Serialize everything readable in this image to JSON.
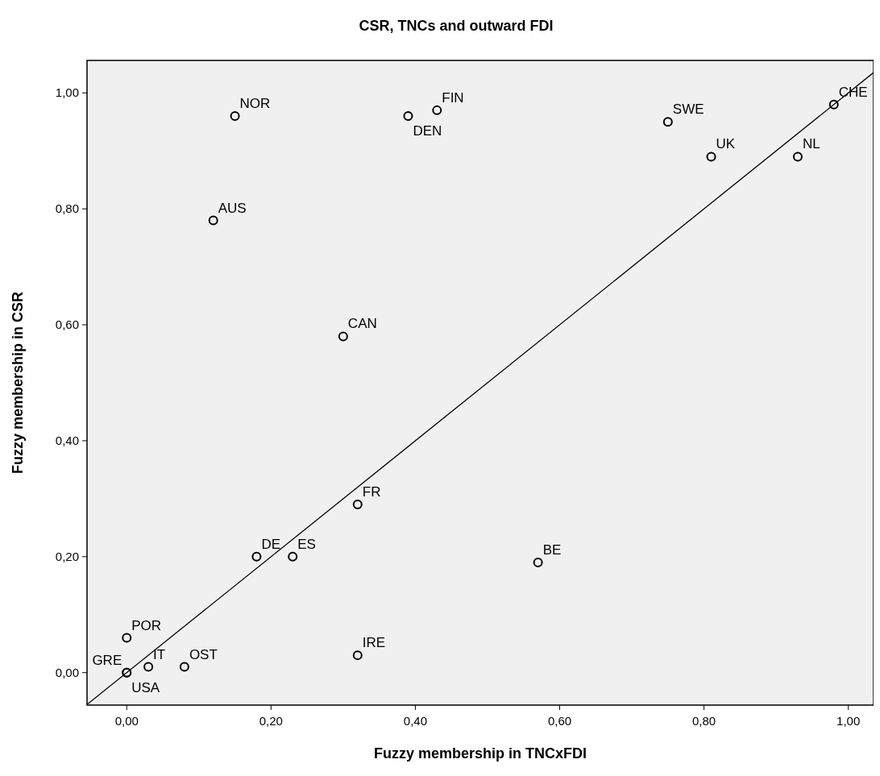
{
  "chart_data": {
    "type": "scatter",
    "title": "CSR, TNCs and outward FDI",
    "xlabel": "Fuzzy membership in TNCxFDI",
    "ylabel": "Fuzzy membership in CSR",
    "xlim": [
      -0.055,
      1.035
    ],
    "ylim": [
      -0.056,
      1.056
    ],
    "xticks": [
      {
        "value": 0,
        "label": "0,00"
      },
      {
        "value": 0.2,
        "label": "0,20"
      },
      {
        "value": 0.4,
        "label": "0,40"
      },
      {
        "value": 0.6,
        "label": "0,60"
      },
      {
        "value": 0.8,
        "label": "0,80"
      },
      {
        "value": 1,
        "label": "1,00"
      }
    ],
    "yticks": [
      {
        "value": 0,
        "label": "0,00"
      },
      {
        "value": 0.2,
        "label": "0,20"
      },
      {
        "value": 0.4,
        "label": "0,40"
      },
      {
        "value": 0.6,
        "label": "0,60"
      },
      {
        "value": 0.8,
        "label": "0,80"
      },
      {
        "value": 1,
        "label": "1,00"
      }
    ],
    "grid": false,
    "marker": "circle",
    "series": [
      {
        "color": "#000000",
        "x": [
          0.15,
          0.39,
          0.43,
          0.75,
          0.81,
          0.93,
          0.98,
          0.12,
          0.3,
          0.32,
          0.18,
          0.23,
          0.57,
          0.32,
          0,
          0,
          0,
          0.03,
          0.08
        ],
        "values": [
          0.96,
          0.96,
          0.97,
          0.95,
          0.89,
          0.89,
          0.98,
          0.78,
          0.58,
          0.29,
          0.2,
          0.2,
          0.19,
          0.03,
          0.06,
          0,
          0,
          0.01,
          0.01
        ]
      },
      {
        "type": "line",
        "color": "#000000",
        "line_style": "solid",
        "marker": "none",
        "x": [
          -0.055,
          1.035
        ],
        "values": [
          -0.055,
          1.035
        ]
      }
    ],
    "annotations": [
      {
        "text": "NOR",
        "x": 0.15,
        "y": 0.96
      },
      {
        "text": "DEN",
        "x": 0.39,
        "y": 0.96
      },
      {
        "text": "FIN",
        "x": 0.43,
        "y": 0.97
      },
      {
        "text": "SWE",
        "x": 0.75,
        "y": 0.95
      },
      {
        "text": "UK",
        "x": 0.81,
        "y": 0.89
      },
      {
        "text": "NL",
        "x": 0.93,
        "y": 0.89
      },
      {
        "text": "CHE",
        "x": 0.98,
        "y": 0.98
      },
      {
        "text": "AUS",
        "x": 0.12,
        "y": 0.78
      },
      {
        "text": "CAN",
        "x": 0.3,
        "y": 0.58
      },
      {
        "text": "FR",
        "x": 0.32,
        "y": 0.29
      },
      {
        "text": "DE",
        "x": 0.18,
        "y": 0.2
      },
      {
        "text": "ES",
        "x": 0.23,
        "y": 0.2
      },
      {
        "text": "BE",
        "x": 0.57,
        "y": 0.19
      },
      {
        "text": "IRE",
        "x": 0.32,
        "y": 0.03
      },
      {
        "text": "POR",
        "x": 0,
        "y": 0.06
      },
      {
        "text": "USA",
        "x": 0,
        "y": 0
      },
      {
        "text": "GRE",
        "x": 0,
        "y": 0
      },
      {
        "text": "IT",
        "x": 0.03,
        "y": 0.01
      },
      {
        "text": "OST",
        "x": 0.08,
        "y": 0.01
      }
    ]
  }
}
